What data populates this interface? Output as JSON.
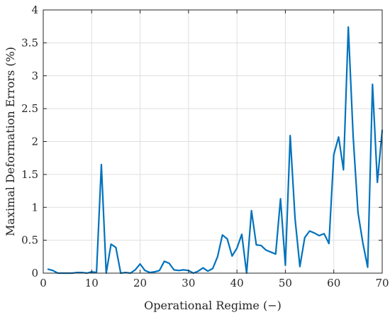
{
  "chart_data": {
    "type": "line",
    "title": "",
    "xlabel": "Operational Regime (−)",
    "ylabel": "Maximal Deformation Errors (%)",
    "xlim": [
      0,
      70
    ],
    "ylim": [
      0,
      4
    ],
    "xticks": [
      0,
      10,
      20,
      30,
      40,
      50,
      60,
      70
    ],
    "xtick_labels": [
      "0",
      "10",
      "20",
      "30",
      "40",
      "50",
      "60",
      "70"
    ],
    "yticks": [
      0,
      0.5,
      1,
      1.5,
      2,
      2.5,
      3,
      3.5,
      4
    ],
    "ytick_labels": [
      "0",
      "0.5",
      "1",
      "1.5",
      "2",
      "2.5",
      "3",
      "3.5",
      "4"
    ],
    "grid": true,
    "legend": "none",
    "series": [
      {
        "color": "#0072BD",
        "x": [
          1,
          2,
          3,
          4,
          5,
          6,
          7,
          8,
          9,
          10,
          11,
          12,
          13,
          14,
          15,
          16,
          17,
          18,
          19,
          20,
          21,
          22,
          23,
          24,
          25,
          26,
          27,
          28,
          29,
          30,
          31,
          32,
          33,
          34,
          35,
          36,
          37,
          38,
          39,
          40,
          41,
          42,
          43,
          44,
          45,
          46,
          47,
          48,
          49,
          50,
          51,
          52,
          53,
          54,
          55,
          56,
          57,
          58,
          59,
          60,
          61,
          62,
          63,
          64,
          65,
          66,
          67,
          68,
          69,
          70
        ],
        "y": [
          0.06,
          0.04,
          0.0,
          0.0,
          0.0,
          0.0,
          0.01,
          0.01,
          0.0,
          0.02,
          0.01,
          1.65,
          0.0,
          0.44,
          0.39,
          0.0,
          0.01,
          0.0,
          0.05,
          0.14,
          0.04,
          0.01,
          0.02,
          0.04,
          0.18,
          0.15,
          0.05,
          0.04,
          0.05,
          0.04,
          0.0,
          0.03,
          0.08,
          0.03,
          0.07,
          0.25,
          0.58,
          0.52,
          0.26,
          0.38,
          0.59,
          0.0,
          0.95,
          0.43,
          0.42,
          0.35,
          0.32,
          0.29,
          1.13,
          0.12,
          2.09,
          0.83,
          0.1,
          0.54,
          0.64,
          0.61,
          0.57,
          0.6,
          0.45,
          1.8,
          2.07,
          1.57,
          3.74,
          2.08,
          0.92,
          0.46,
          0.09,
          2.87,
          1.38,
          2.17
        ]
      }
    ]
  }
}
